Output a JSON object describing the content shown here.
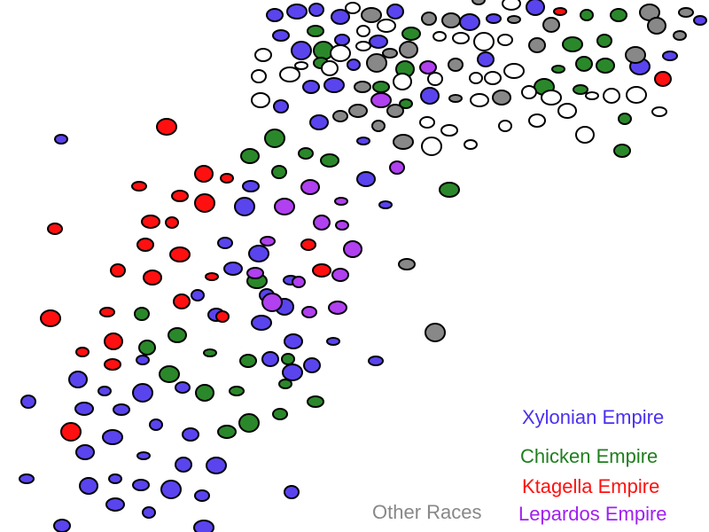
{
  "legend": [
    "Xylonian Empire",
    "Chicken Empire",
    "Ktagella Empire",
    "Other Races",
    "Lepardos Empire"
  ]
}
